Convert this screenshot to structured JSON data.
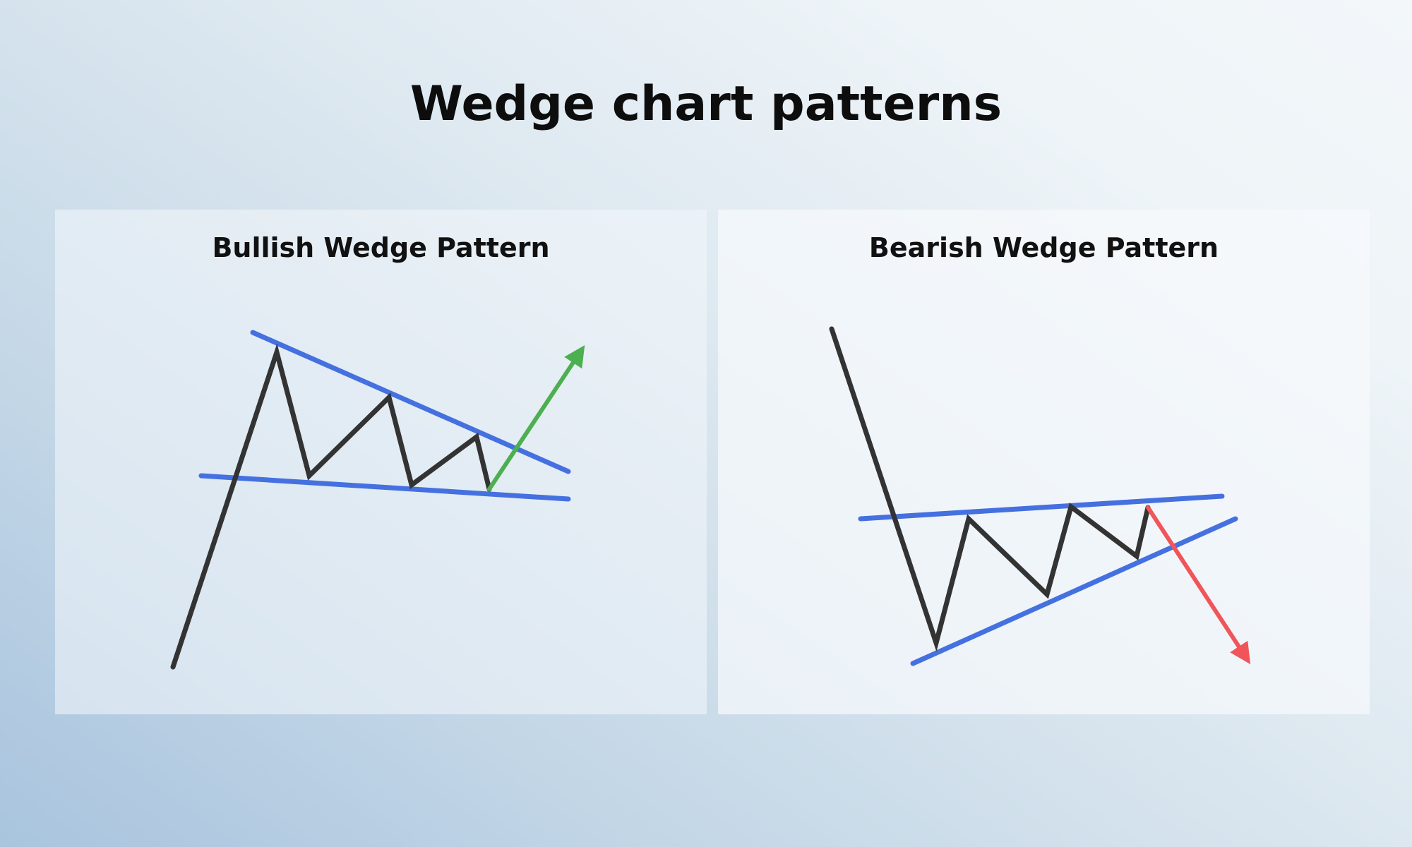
{
  "title": "Wedge chart patterns",
  "panels": [
    {
      "title": "Bullish Wedge Pattern",
      "breakout": "up",
      "colors": {
        "price": "#333333",
        "trendline": "#4570e0",
        "breakout": "#4caf50"
      }
    },
    {
      "title": "Bearish Wedge Pattern",
      "breakout": "down",
      "colors": {
        "price": "#333333",
        "trendline": "#4570e0",
        "breakout": "#f0555a"
      }
    }
  ]
}
